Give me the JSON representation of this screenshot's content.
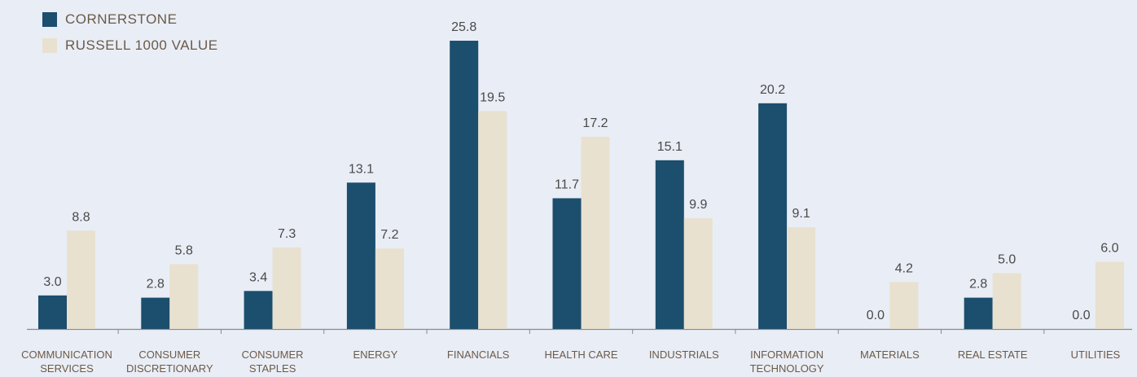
{
  "chart_data": {
    "type": "bar",
    "categories": [
      [
        "COMMUNICATION",
        "SERVICES"
      ],
      [
        "CONSUMER",
        "DISCRETIONARY"
      ],
      [
        "CONSUMER",
        "STAPLES"
      ],
      [
        "ENERGY"
      ],
      [
        "FINANCIALS"
      ],
      [
        "HEALTH CARE"
      ],
      [
        "INDUSTRIALS"
      ],
      [
        "INFORMATION",
        "TECHNOLOGY"
      ],
      [
        "MATERIALS"
      ],
      [
        "REAL ESTATE"
      ],
      [
        "UTILITIES"
      ]
    ],
    "series": [
      {
        "name": "CORNERSTONE",
        "color": "#1c4e6e",
        "values": [
          3.0,
          2.8,
          3.4,
          13.1,
          25.8,
          11.7,
          15.1,
          20.2,
          0.0,
          2.8,
          0.0
        ],
        "labels": [
          "3.0",
          "2.8",
          "3.4",
          "13.1",
          "25.8",
          "11.7",
          "15.1",
          "20.2",
          "0.0",
          "2.8",
          "0.0"
        ]
      },
      {
        "name": "RUSSELL 1000 VALUE",
        "color": "#e8e1cf",
        "values": [
          8.8,
          5.8,
          7.3,
          7.2,
          19.5,
          17.2,
          9.9,
          9.1,
          4.2,
          5.0,
          6.0
        ],
        "labels": [
          "8.8",
          "5.8",
          "7.3",
          "7.2",
          "19.5",
          "17.2",
          "9.9",
          "9.1",
          "4.2",
          "5.0",
          "6.0"
        ]
      }
    ],
    "title": "",
    "xlabel": "",
    "ylabel": "",
    "ylim": [
      0,
      25.8
    ],
    "grid": false,
    "legend_position": "top-left",
    "text_color": "#6b5a49",
    "value_label_color": "#4a4a4a",
    "axis_color": "#8a8a8a",
    "background": "#e9edf5"
  }
}
